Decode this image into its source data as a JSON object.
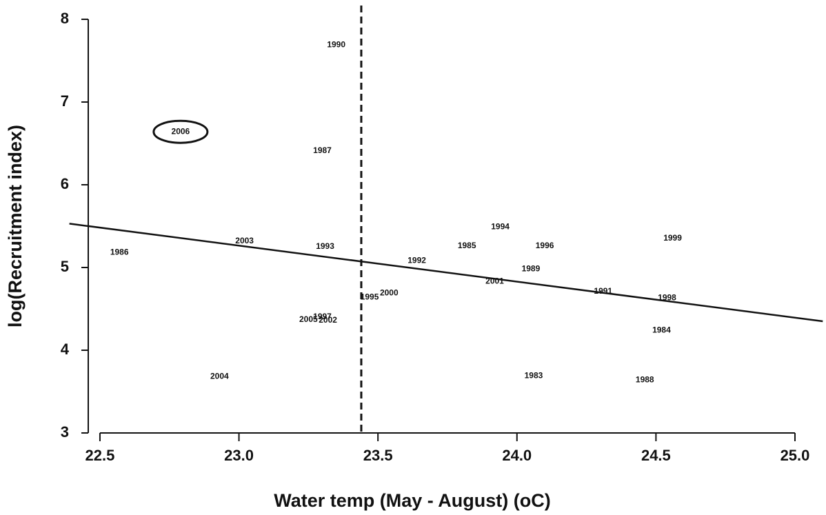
{
  "chart_data": {
    "type": "scatter",
    "x_label": "Water temp (May - August) (oC)",
    "y_label": "log(Recruitment index)",
    "labels": [
      "1990",
      "2006",
      "1987",
      "1986",
      "2003",
      "1993",
      "1992",
      "1985",
      "1994",
      "1996",
      "1999",
      "1989",
      "2001",
      "1991",
      "1998",
      "2000",
      "1995",
      "1997",
      "2005",
      "2002",
      "1984",
      "2004",
      "1983",
      "1988"
    ],
    "x": [
      23.35,
      22.79,
      23.3,
      22.57,
      23.02,
      23.31,
      23.64,
      23.82,
      23.94,
      24.1,
      24.56,
      24.05,
      23.92,
      24.31,
      24.54,
      23.54,
      23.47,
      23.3,
      23.25,
      23.32,
      24.52,
      22.93,
      24.06,
      24.46
    ],
    "y": [
      7.69,
      6.64,
      6.41,
      5.18,
      5.32,
      5.25,
      5.08,
      5.26,
      5.49,
      5.26,
      5.35,
      4.98,
      4.83,
      4.71,
      4.63,
      4.69,
      4.64,
      4.4,
      4.37,
      4.36,
      4.24,
      3.68,
      3.69,
      3.64
    ],
    "highlight_index": 1,
    "fit_line": {
      "x": [
        22.39,
        25.1
      ],
      "y": [
        5.53,
        4.35
      ]
    },
    "vline": 23.44,
    "xlim": [
      22.39,
      25.1
    ],
    "ylim": [
      3,
      8
    ],
    "xticks": [
      22.5,
      {
        "value": 23,
        "label": "23.0"
      },
      23.5,
      {
        "value": 24,
        "label": "24.0"
      },
      24.5,
      {
        "value": 25,
        "label": "25.0"
      }
    ],
    "yticks": [
      3,
      4,
      5,
      6,
      7,
      8
    ]
  }
}
